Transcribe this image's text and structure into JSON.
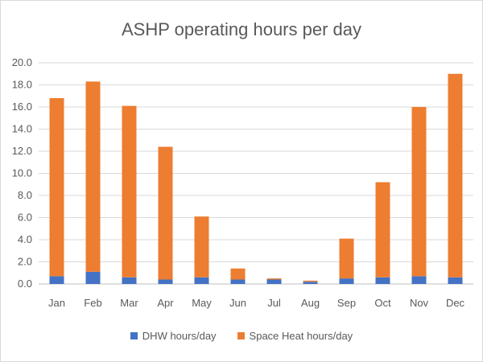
{
  "chart_data": {
    "type": "bar",
    "stacked": true,
    "title": "ASHP operating hours per day",
    "xlabel": "",
    "ylabel": "",
    "categories": [
      "Jan",
      "Feb",
      "Mar",
      "Apr",
      "May",
      "Jun",
      "Jul",
      "Aug",
      "Sep",
      "Oct",
      "Nov",
      "Dec"
    ],
    "series": [
      {
        "name": "DHW hours/day",
        "color": "#4472C4",
        "values": [
          0.7,
          1.1,
          0.6,
          0.4,
          0.6,
          0.4,
          0.4,
          0.2,
          0.5,
          0.6,
          0.7,
          0.6
        ]
      },
      {
        "name": "Space Heat hours/day",
        "color": "#ED7D31",
        "values": [
          16.1,
          17.2,
          15.5,
          12.0,
          5.5,
          1.0,
          0.1,
          0.1,
          3.6,
          8.6,
          15.3,
          18.4
        ]
      }
    ],
    "ylim": [
      0,
      20
    ],
    "yticks": [
      "0.0",
      "2.0",
      "4.0",
      "6.0",
      "8.0",
      "10.0",
      "12.0",
      "14.0",
      "16.0",
      "18.0",
      "20.0"
    ],
    "grid": true,
    "legend": "bottom"
  }
}
